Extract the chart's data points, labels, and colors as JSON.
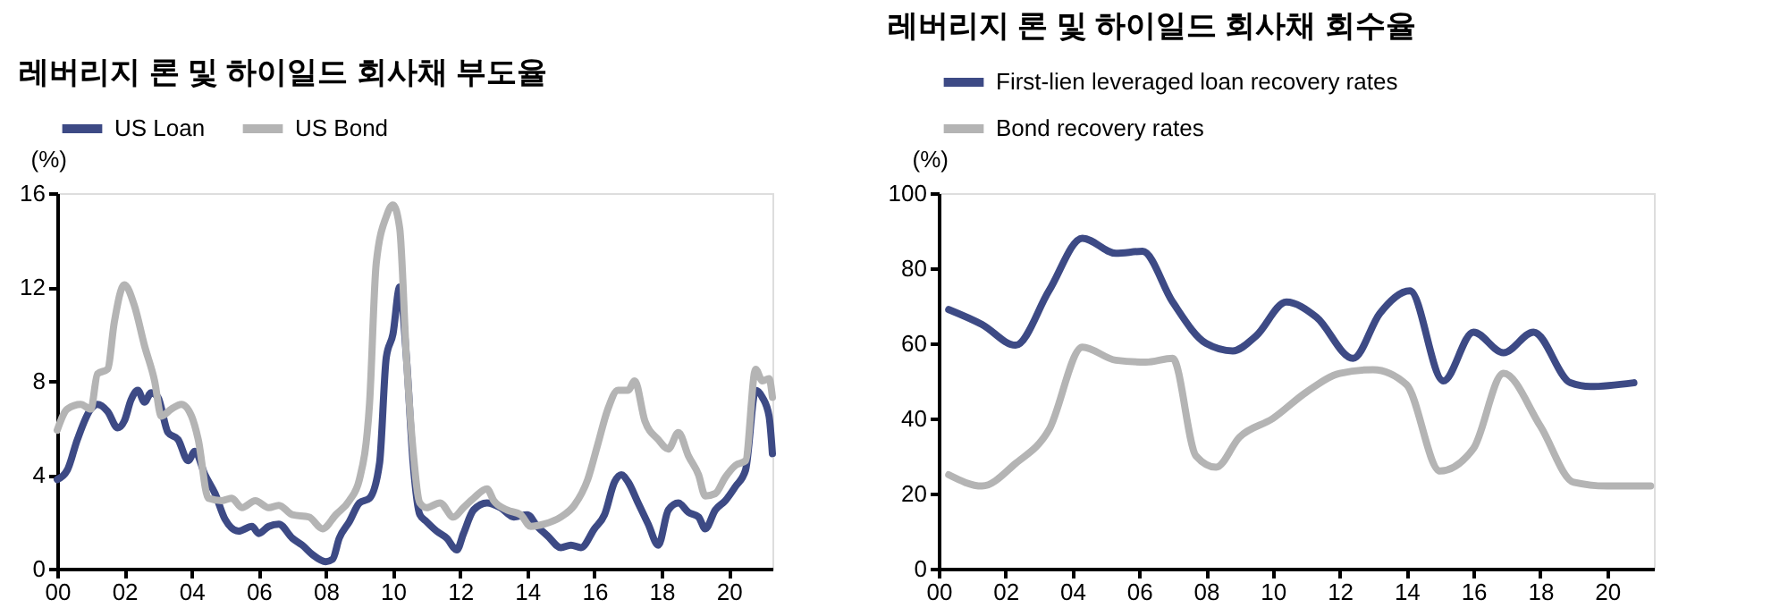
{
  "chart_data": [
    {
      "type": "line",
      "title": "레버리지 론 및 하이일드 회사채 부도율",
      "ylabel": "(%)",
      "legend": "top",
      "grid": false,
      "marker": "none",
      "line_style": "solid",
      "xlim": [
        2000,
        2021.3
      ],
      "xticks": [
        {
          "value": 2000,
          "label": "00"
        },
        {
          "value": 2002,
          "label": "02"
        },
        {
          "value": 2004,
          "label": "04"
        },
        {
          "value": 2006,
          "label": "06"
        },
        {
          "value": 2008,
          "label": "08"
        },
        {
          "value": 2010,
          "label": "10"
        },
        {
          "value": 2012,
          "label": "12"
        },
        {
          "value": 2014,
          "label": "14"
        },
        {
          "value": 2016,
          "label": "16"
        },
        {
          "value": 2018,
          "label": "18"
        },
        {
          "value": 2020,
          "label": "20"
        }
      ],
      "ylim": [
        0,
        16
      ],
      "yticks": [
        0,
        4,
        8,
        12,
        16
      ],
      "series": [
        {
          "name": "US Loan",
          "color": "#3d4a85",
          "x": [
            2000.0,
            2000.3,
            2000.6,
            2001.0,
            2001.2,
            2001.5,
            2001.8,
            2002.0,
            2002.2,
            2002.4,
            2002.6,
            2002.8,
            2003.0,
            2003.3,
            2003.6,
            2003.9,
            2004.1,
            2004.4,
            2004.7,
            2005.0,
            2005.4,
            2005.8,
            2006.0,
            2006.3,
            2006.6,
            2007.0,
            2007.3,
            2007.6,
            2008.0,
            2008.2,
            2008.4,
            2008.7,
            2009.0,
            2009.3,
            2009.6,
            2009.8,
            2010.0,
            2010.2,
            2010.4,
            2010.6,
            2010.8,
            2011.0,
            2011.3,
            2011.6,
            2011.9,
            2012.1,
            2012.4,
            2012.8,
            2013.2,
            2013.6,
            2014.0,
            2014.3,
            2014.6,
            2015.0,
            2015.3,
            2015.6,
            2016.0,
            2016.3,
            2016.6,
            2016.8,
            2017.0,
            2017.3,
            2017.6,
            2017.9,
            2018.2,
            2018.5,
            2018.8,
            2019.1,
            2019.3,
            2019.6,
            2019.9,
            2020.2,
            2020.5,
            2020.8,
            2021.0,
            2021.2,
            2021.3
          ],
          "values": [
            3.8,
            4.2,
            5.5,
            6.8,
            7.0,
            6.7,
            6.0,
            6.3,
            7.2,
            7.6,
            7.1,
            7.5,
            7.3,
            5.8,
            5.5,
            4.6,
            5.0,
            4.0,
            3.2,
            2.1,
            1.6,
            1.8,
            1.5,
            1.8,
            1.9,
            1.3,
            1.0,
            0.6,
            0.3,
            0.4,
            1.3,
            2.0,
            2.8,
            3.0,
            4.5,
            9.0,
            10.0,
            12.0,
            9.0,
            4.5,
            2.3,
            2.0,
            1.6,
            1.3,
            0.8,
            1.5,
            2.5,
            2.8,
            2.6,
            2.2,
            2.3,
            1.8,
            1.4,
            0.9,
            1.0,
            0.9,
            1.7,
            2.3,
            3.7,
            4.0,
            3.7,
            2.8,
            1.9,
            1.0,
            2.5,
            2.8,
            2.4,
            2.2,
            1.7,
            2.5,
            2.9,
            3.5,
            4.2,
            7.6,
            7.3,
            6.5,
            4.9
          ]
        },
        {
          "name": "US Bond",
          "color": "#b4b4b4",
          "x": [
            2000.0,
            2000.3,
            2000.7,
            2001.0,
            2001.2,
            2001.5,
            2001.7,
            2002.0,
            2002.3,
            2002.6,
            2002.9,
            2003.1,
            2003.4,
            2003.7,
            2004.0,
            2004.2,
            2004.5,
            2004.9,
            2005.2,
            2005.5,
            2005.9,
            2006.3,
            2006.6,
            2007.0,
            2007.5,
            2007.9,
            2008.3,
            2008.7,
            2009.0,
            2009.3,
            2009.5,
            2009.8,
            2010.0,
            2010.2,
            2010.4,
            2010.6,
            2010.8,
            2011.0,
            2011.4,
            2011.8,
            2012.1,
            2012.4,
            2012.8,
            2013.0,
            2013.4,
            2013.8,
            2014.1,
            2014.5,
            2015.0,
            2015.4,
            2015.8,
            2016.1,
            2016.4,
            2016.7,
            2017.0,
            2017.2,
            2017.5,
            2017.9,
            2018.2,
            2018.5,
            2018.8,
            2019.1,
            2019.3,
            2019.6,
            2019.9,
            2020.2,
            2020.5,
            2020.8,
            2021.0,
            2021.2,
            2021.3
          ],
          "values": [
            5.9,
            6.8,
            7.0,
            6.8,
            8.3,
            8.5,
            10.5,
            12.1,
            11.2,
            9.5,
            8.0,
            6.5,
            6.8,
            7.0,
            6.5,
            5.5,
            3.0,
            2.9,
            3.0,
            2.6,
            2.9,
            2.6,
            2.7,
            2.3,
            2.2,
            1.7,
            2.3,
            2.9,
            3.8,
            7.0,
            13.0,
            15.0,
            15.5,
            14.5,
            9.0,
            5.0,
            2.8,
            2.6,
            2.8,
            2.2,
            2.6,
            3.0,
            3.4,
            2.9,
            2.5,
            2.3,
            1.8,
            1.9,
            2.2,
            2.7,
            3.8,
            5.3,
            6.8,
            7.6,
            7.6,
            8.0,
            6.3,
            5.5,
            5.1,
            5.8,
            4.8,
            4.0,
            3.1,
            3.2,
            3.9,
            4.4,
            4.6,
            8.5,
            8.0,
            8.1,
            7.3
          ]
        }
      ]
    },
    {
      "type": "line",
      "title": "레버리지 론 및 하이일드 회사채 회수율",
      "ylabel": "(%)",
      "legend": "top",
      "grid": false,
      "marker": "none",
      "line_style": "solid",
      "xlim": [
        2000,
        2021.4
      ],
      "xticks": [
        {
          "value": 2000,
          "label": "00"
        },
        {
          "value": 2002,
          "label": "02"
        },
        {
          "value": 2004,
          "label": "04"
        },
        {
          "value": 2006,
          "label": "06"
        },
        {
          "value": 2008,
          "label": "08"
        },
        {
          "value": 2010,
          "label": "10"
        },
        {
          "value": 2012,
          "label": "12"
        },
        {
          "value": 2014,
          "label": "14"
        },
        {
          "value": 2016,
          "label": "16"
        },
        {
          "value": 2018,
          "label": "18"
        },
        {
          "value": 2020,
          "label": "20"
        }
      ],
      "ylim": [
        0,
        100
      ],
      "yticks": [
        0,
        20,
        40,
        60,
        80,
        100
      ],
      "series": [
        {
          "name": "First-lien leveraged loan recovery rates",
          "color": "#3d4a85",
          "x": [
            2000.3,
            2001.3,
            2002.3,
            2003.3,
            2004.3,
            2005.3,
            2006.1,
            2007.0,
            2008.0,
            2008.8,
            2009.5,
            2010.4,
            2011.3,
            2012.4,
            2013.2,
            2014.1,
            2015.1,
            2016.0,
            2016.9,
            2017.8,
            2018.9,
            2019.5,
            2020.8
          ],
          "values": [
            69,
            65,
            59.5,
            74,
            88,
            84,
            84.5,
            71,
            60,
            58,
            62,
            71,
            67,
            56,
            68,
            74,
            50,
            63,
            57.5,
            63,
            49.5,
            48.5,
            49.5
          ]
        },
        {
          "name": "Bond recovery rates",
          "color": "#b4b4b4",
          "x": [
            2000.3,
            2001.3,
            2002.3,
            2003.3,
            2004.3,
            2005.3,
            2006.2,
            2007.0,
            2007.7,
            2008.3,
            2009.0,
            2010.0,
            2011.0,
            2012.0,
            2013.0,
            2014.0,
            2015.0,
            2016.0,
            2016.9,
            2018.0,
            2019.0,
            2020.0,
            2021.3
          ],
          "values": [
            25,
            22,
            28,
            37,
            59,
            55.5,
            55,
            56,
            30,
            27,
            35,
            40,
            47,
            52,
            53,
            49,
            26,
            32,
            52,
            38,
            23,
            22,
            22
          ]
        }
      ]
    }
  ]
}
